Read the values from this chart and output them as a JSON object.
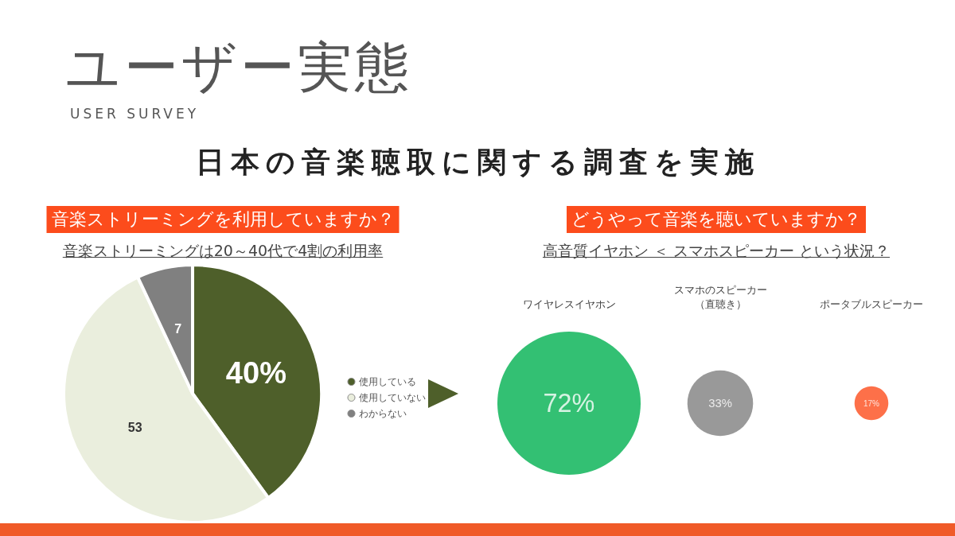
{
  "chart_data": [
    {
      "type": "other",
      "title": "ユーザー実態",
      "subtitle": "USER SURVEY",
      "annotations": [
        "日本の音楽聴取に関する調査を実施"
      ]
    },
    {
      "type": "pie",
      "title": "音楽ストリーミングを利用していますか？",
      "subtitle": "音楽ストリーミングは20～40代で4割の利用率",
      "categories": [
        "使用している",
        "使用していない",
        "わからない"
      ],
      "values": [
        40,
        53,
        7
      ],
      "colors": [
        "#4e5f2a",
        "#eaeedd",
        "#808080"
      ],
      "value_labels": [
        "40%",
        "53",
        "7"
      ],
      "legend": "right"
    },
    {
      "type": "other",
      "title": "どうやって音楽を聴いていますか？",
      "subtitle": "高音質イヤホン ＜ スマホスピーカー という状況？",
      "categories": [
        "ワイヤレスイヤホン",
        "スマホのスピーカー（直聴き）",
        "ポータブルスピーカー"
      ],
      "values": [
        72,
        33,
        17
      ],
      "colors": [
        "#00b050",
        "#808080",
        "#fc4c1c"
      ],
      "value_labels": [
        "72%",
        "33%",
        "17%"
      ]
    }
  ]
}
